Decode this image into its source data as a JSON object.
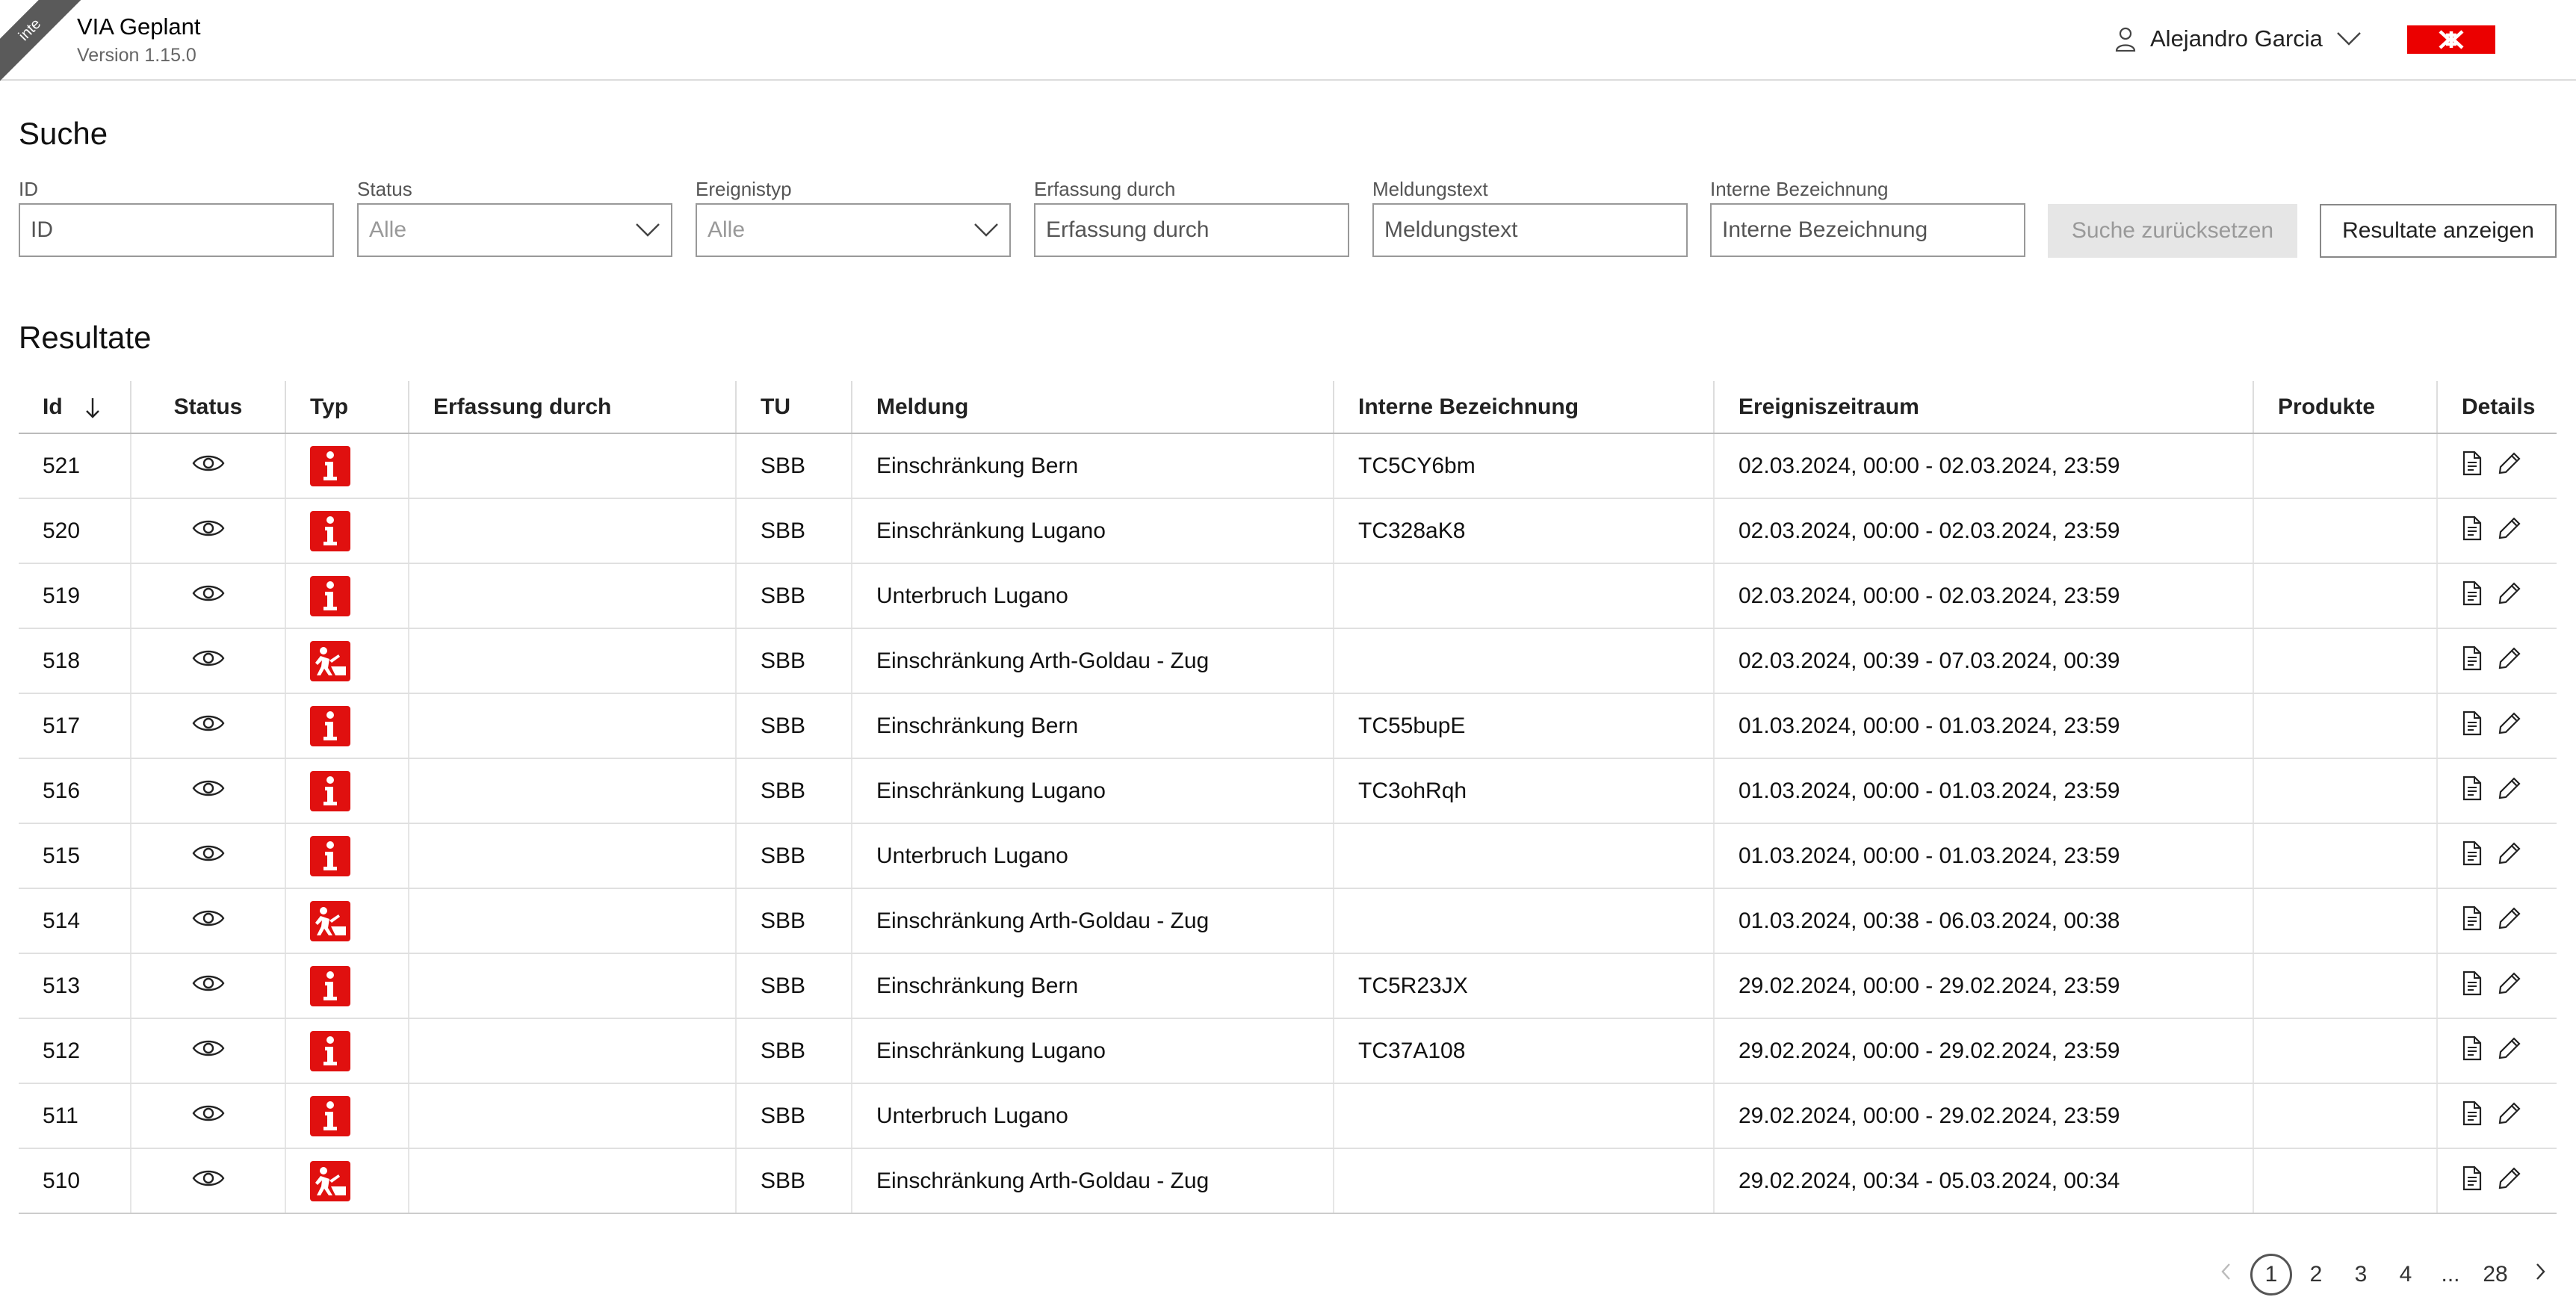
{
  "header": {
    "env_badge": "inte",
    "app_title": "VIA Geplant",
    "version": "Version 1.15.0",
    "user_name": "Alejandro Garcia"
  },
  "search": {
    "heading": "Suche",
    "fields": {
      "id": {
        "label": "ID",
        "placeholder": "ID"
      },
      "status": {
        "label": "Status",
        "value": "Alle"
      },
      "ereignistyp": {
        "label": "Ereignistyp",
        "value": "Alle"
      },
      "erfassung": {
        "label": "Erfassung durch",
        "placeholder": "Erfassung durch"
      },
      "meldungstext": {
        "label": "Meldungstext",
        "placeholder": "Meldungstext"
      },
      "interne": {
        "label": "Interne Bezeichnung",
        "placeholder": "Interne Bezeichnung"
      }
    },
    "reset_label": "Suche zurücksetzen",
    "show_label": "Resultate anzeigen"
  },
  "results": {
    "heading": "Resultate",
    "columns": [
      "Id",
      "Status",
      "Typ",
      "Erfassung durch",
      "TU",
      "Meldung",
      "Interne Bezeichnung",
      "Ereigniszeitraum",
      "Produkte",
      "Details"
    ],
    "rows": [
      {
        "id": "521",
        "type": "info",
        "erfassung": "",
        "tu": "SBB",
        "meldung": "Einschränkung Bern",
        "interne": "TC5CY6bm",
        "zeitraum": "02.03.2024, 00:00 - 02.03.2024, 23:59",
        "produkte": ""
      },
      {
        "id": "520",
        "type": "info",
        "erfassung": "",
        "tu": "SBB",
        "meldung": "Einschränkung Lugano",
        "interne": "TC328aK8",
        "zeitraum": "02.03.2024, 00:00 - 02.03.2024, 23:59",
        "produkte": ""
      },
      {
        "id": "519",
        "type": "info",
        "erfassung": "",
        "tu": "SBB",
        "meldung": "Unterbruch Lugano",
        "interne": "",
        "zeitraum": "02.03.2024, 00:00 - 02.03.2024, 23:59",
        "produkte": ""
      },
      {
        "id": "518",
        "type": "construction",
        "erfassung": "",
        "tu": "SBB",
        "meldung": "Einschränkung Arth-Goldau - Zug",
        "interne": "",
        "zeitraum": "02.03.2024, 00:39 - 07.03.2024, 00:39",
        "produkte": ""
      },
      {
        "id": "517",
        "type": "info",
        "erfassung": "",
        "tu": "SBB",
        "meldung": "Einschränkung Bern",
        "interne": "TC55bupE",
        "zeitraum": "01.03.2024, 00:00 - 01.03.2024, 23:59",
        "produkte": ""
      },
      {
        "id": "516",
        "type": "info",
        "erfassung": "",
        "tu": "SBB",
        "meldung": "Einschränkung Lugano",
        "interne": "TC3ohRqh",
        "zeitraum": "01.03.2024, 00:00 - 01.03.2024, 23:59",
        "produkte": ""
      },
      {
        "id": "515",
        "type": "info",
        "erfassung": "",
        "tu": "SBB",
        "meldung": "Unterbruch Lugano",
        "interne": "",
        "zeitraum": "01.03.2024, 00:00 - 01.03.2024, 23:59",
        "produkte": ""
      },
      {
        "id": "514",
        "type": "construction",
        "erfassung": "",
        "tu": "SBB",
        "meldung": "Einschränkung Arth-Goldau - Zug",
        "interne": "",
        "zeitraum": "01.03.2024, 00:38 - 06.03.2024, 00:38",
        "produkte": ""
      },
      {
        "id": "513",
        "type": "info",
        "erfassung": "",
        "tu": "SBB",
        "meldung": "Einschränkung Bern",
        "interne": "TC5R23JX",
        "zeitraum": "29.02.2024, 00:00 - 29.02.2024, 23:59",
        "produkte": ""
      },
      {
        "id": "512",
        "type": "info",
        "erfassung": "",
        "tu": "SBB",
        "meldung": "Einschränkung Lugano",
        "interne": "TC37A108",
        "zeitraum": "29.02.2024, 00:00 - 29.02.2024, 23:59",
        "produkte": ""
      },
      {
        "id": "511",
        "type": "info",
        "erfassung": "",
        "tu": "SBB",
        "meldung": "Unterbruch Lugano",
        "interne": "",
        "zeitraum": "29.02.2024, 00:00 - 29.02.2024, 23:59",
        "produkte": ""
      },
      {
        "id": "510",
        "type": "construction",
        "erfassung": "",
        "tu": "SBB",
        "meldung": "Einschränkung Arth-Goldau - Zug",
        "interne": "",
        "zeitraum": "29.02.2024, 00:34 - 05.03.2024, 00:34",
        "produkte": ""
      }
    ]
  },
  "pagination": {
    "prev_icon": "chevron-left-icon",
    "pages": [
      "1",
      "2",
      "3",
      "4",
      "...",
      "28"
    ],
    "current": "1",
    "next_icon": "chevron-right-icon"
  },
  "colors": {
    "accent": "#eb0000",
    "badge": "#e0100f"
  }
}
